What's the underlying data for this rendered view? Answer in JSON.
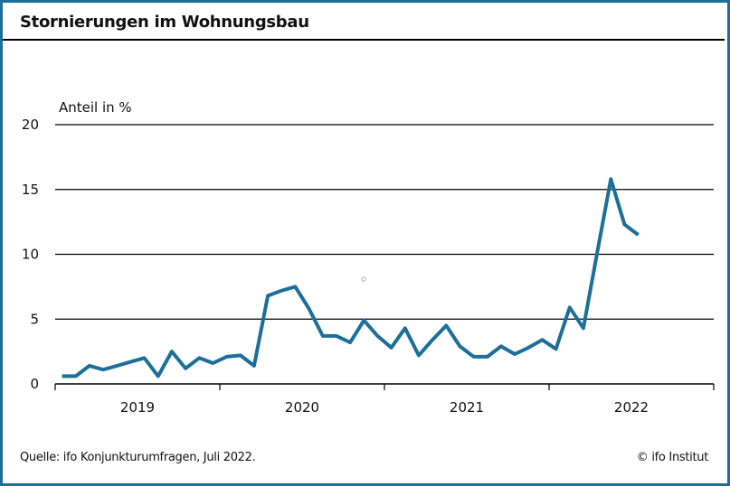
{
  "header": {
    "title": "Stornierungen im Wohnungsbau"
  },
  "footer": {
    "source": "Quelle: ifo Konjunkturumfragen, Juli 2022.",
    "copyright": "© ifo Institut"
  },
  "colors": {
    "frame": "#1d6f9a",
    "line": "#1d6f9a",
    "grid": "#000000"
  },
  "chart_data": {
    "type": "line",
    "title": "Stornierungen im Wohnungsbau",
    "xlabel": "",
    "ylabel": "Anteil in %",
    "ylim": [
      0,
      20
    ],
    "yticks": [
      0,
      5,
      10,
      15,
      20
    ],
    "ytick_labels": [
      "0",
      "5",
      "10",
      "15",
      "20"
    ],
    "grid": "horizontal",
    "x_categories": [
      "2019",
      "2020",
      "2021",
      "2022"
    ],
    "x_frequency": "monthly",
    "x_start": "2019-01",
    "x_end": "2022-07",
    "series": [
      {
        "name": "Stornierungen",
        "values": [
          0.6,
          0.6,
          1.4,
          1.1,
          1.4,
          1.7,
          2.0,
          0.6,
          2.5,
          1.2,
          2.0,
          1.6,
          2.1,
          2.2,
          1.4,
          6.8,
          7.2,
          7.5,
          5.8,
          3.7,
          3.7,
          3.2,
          4.9,
          3.7,
          2.8,
          4.3,
          2.2,
          3.4,
          4.5,
          2.9,
          2.1,
          2.1,
          2.9,
          2.3,
          2.8,
          3.4,
          2.7,
          5.9,
          4.3,
          10.1,
          15.8,
          12.3,
          11.5
        ]
      }
    ]
  }
}
